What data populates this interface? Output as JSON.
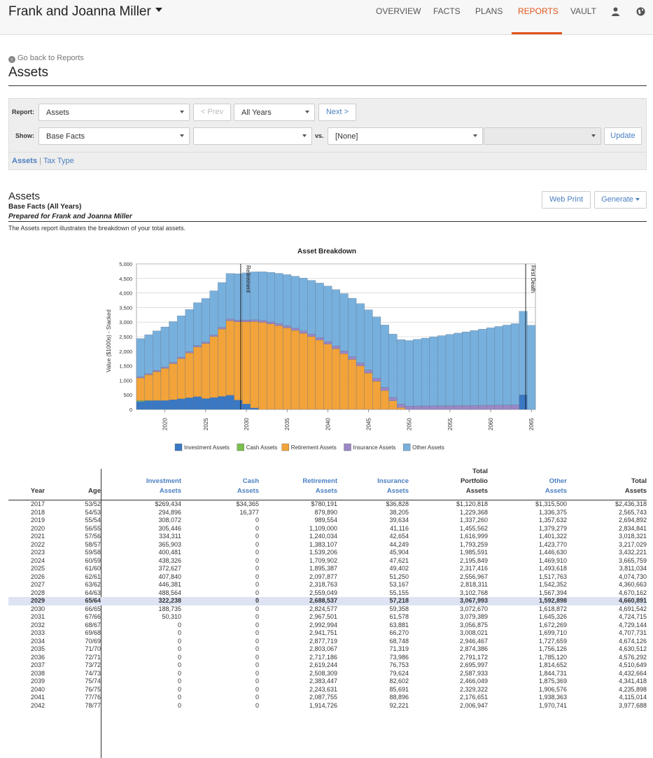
{
  "nav": {
    "client_name": "Frank and Joanna Miller",
    "items": [
      "OVERVIEW",
      "FACTS",
      "PLANS",
      "REPORTS",
      "VAULT"
    ],
    "active": "REPORTS"
  },
  "header": {
    "back_link": "Go back to Reports",
    "title": "Assets"
  },
  "filters": {
    "report_label": "Report:",
    "report_value": "Assets",
    "prev_label": "< Prev",
    "years_value": "All Years",
    "next_label": "Next >",
    "show_label": "Show:",
    "show_value": "Base Facts",
    "second_value": "",
    "vs_label": "vs.",
    "vs_value": "[None]",
    "update_label": "Update",
    "tabs": [
      "Assets",
      "Tax Type"
    ],
    "tab_separator": "|"
  },
  "report": {
    "title": "Assets",
    "subtitle": "Base Facts (All Years)",
    "prepared_for": "Prepared for Frank and Joanna Miller",
    "description": "The Assets report illustrates the breakdown of your total assets.",
    "web_print_label": "Web Print",
    "generate_label": "Generate"
  },
  "chart_data": {
    "type": "bar",
    "stacked": true,
    "title": "Asset Breakdown",
    "ylabel": "Value ($1000s) - Stacked",
    "xlabel": "",
    "ylim": [
      0,
      5000
    ],
    "yticks": [
      0,
      500,
      1000,
      1500,
      2000,
      2500,
      3000,
      3500,
      4000,
      4500,
      5000
    ],
    "ytick_labels": [
      "0",
      "500",
      "1,000",
      "1,500",
      "2,000",
      "2,500",
      "3,000",
      "3,500",
      "4,000",
      "4,500",
      "5,000"
    ],
    "xticks": [
      "2020",
      "2025",
      "2030",
      "2035",
      "2040",
      "2045",
      "2050",
      "2055",
      "2060",
      "2065"
    ],
    "categories": [
      2017,
      2018,
      2019,
      2020,
      2021,
      2022,
      2023,
      2024,
      2025,
      2026,
      2027,
      2028,
      2029,
      2030,
      2031,
      2032,
      2033,
      2034,
      2035,
      2036,
      2037,
      2038,
      2039,
      2040,
      2041,
      2042,
      2043,
      2044,
      2045,
      2046,
      2047,
      2048,
      2049,
      2050,
      2051,
      2052,
      2053,
      2054,
      2055,
      2056,
      2057,
      2058,
      2059,
      2060,
      2061,
      2062,
      2063,
      2064,
      2065
    ],
    "series": [
      {
        "name": "Investment Assets",
        "color": "#3a78c3",
        "values": [
          269,
          295,
          308,
          305,
          334,
          366,
          400,
          438,
          373,
          408,
          446,
          489,
          322,
          189,
          50,
          0,
          0,
          0,
          0,
          0,
          0,
          0,
          0,
          0,
          0,
          0,
          0,
          0,
          0,
          0,
          0,
          0,
          0,
          0,
          0,
          0,
          0,
          0,
          0,
          0,
          0,
          0,
          0,
          0,
          0,
          0,
          0,
          500,
          0
        ]
      },
      {
        "name": "Cash Assets",
        "color": "#7bbf4f",
        "values": [
          34,
          16,
          0,
          0,
          0,
          0,
          0,
          0,
          0,
          0,
          0,
          0,
          0,
          0,
          0,
          0,
          0,
          0,
          0,
          0,
          0,
          0,
          0,
          0,
          0,
          0,
          0,
          0,
          0,
          0,
          0,
          0,
          0,
          0,
          0,
          0,
          0,
          0,
          0,
          0,
          0,
          0,
          0,
          0,
          0,
          0,
          0,
          0,
          0
        ]
      },
      {
        "name": "Retirement Assets",
        "color": "#f2a33a",
        "values": [
          780,
          880,
          990,
          1109,
          1240,
          1383,
          1539,
          1710,
          1895,
          2098,
          2319,
          2559,
          2689,
          2825,
          2968,
          2993,
          2942,
          2878,
          2803,
          2717,
          2619,
          2508,
          2383,
          2244,
          2088,
          1915,
          1720,
          1500,
          1250,
          970,
          650,
          300,
          70,
          0,
          0,
          0,
          0,
          0,
          0,
          0,
          0,
          0,
          0,
          0,
          0,
          0,
          0,
          0,
          0
        ]
      },
      {
        "name": "Insurance Assets",
        "color": "#9b87c6",
        "values": [
          37,
          38,
          40,
          41,
          43,
          44,
          46,
          48,
          49,
          51,
          53,
          55,
          57,
          59,
          62,
          64,
          66,
          69,
          71,
          74,
          77,
          80,
          83,
          86,
          89,
          92,
          95,
          98,
          101,
          104,
          107,
          110,
          113,
          116,
          119,
          122,
          125,
          128,
          131,
          134,
          137,
          140,
          143,
          146,
          149,
          152,
          155,
          0,
          0
        ]
      },
      {
        "name": "Other Assets",
        "color": "#78b0dd",
        "values": [
          1316,
          1336,
          1358,
          1379,
          1401,
          1424,
          1447,
          1470,
          1494,
          1518,
          1542,
          1567,
          1593,
          1619,
          1645,
          1672,
          1700,
          1728,
          1756,
          1785,
          1815,
          1845,
          1875,
          1907,
          1938,
          1971,
          2004,
          2038,
          2072,
          2107,
          2143,
          2179,
          2215,
          2252,
          2290,
          2328,
          2367,
          2407,
          2447,
          2488,
          2529,
          2571,
          2614,
          2657,
          2701,
          2746,
          2792,
          2870,
          2890
        ]
      }
    ],
    "annotations": [
      {
        "label": "Retirement",
        "x": 2029
      },
      {
        "label": "First Death",
        "x": 2064
      }
    ],
    "legend_position": "bottom"
  },
  "table": {
    "headers": {
      "year": "Year",
      "age": "Age",
      "investment": [
        "Investment",
        "Assets"
      ],
      "cash": [
        "Cash",
        "Assets"
      ],
      "retirement": [
        "Retirement",
        "Assets"
      ],
      "insurance": [
        "Insurance",
        "Assets"
      ],
      "total_portfolio": [
        "Total",
        "Portfolio",
        "Assets"
      ],
      "other": [
        "Other",
        "Assets"
      ],
      "total": [
        "Total",
        "Assets"
      ]
    },
    "highlight_year": "2029",
    "rows": [
      [
        "2017",
        "53/52",
        "$269,434",
        "$34,365",
        "$780,191",
        "$36,828",
        "$1,120,818",
        "$1,315,500",
        "$2,436,318"
      ],
      [
        "2018",
        "54/53",
        "294,896",
        "16,377",
        "879,890",
        "38,205",
        "1,229,368",
        "1,336,375",
        "2,565,743"
      ],
      [
        "2019",
        "55/54",
        "308,072",
        "0",
        "989,554",
        "39,634",
        "1,337,260",
        "1,357,632",
        "2,694,892"
      ],
      [
        "2020",
        "56/55",
        "305,446",
        "0",
        "1,109,000",
        "41,116",
        "1,455,562",
        "1,379,279",
        "2,834,841"
      ],
      [
        "2021",
        "57/56",
        "334,311",
        "0",
        "1,240,034",
        "42,654",
        "1,616,999",
        "1,401,322",
        "3,018,321"
      ],
      [
        "2022",
        "58/57",
        "365,903",
        "0",
        "1,383,107",
        "44,249",
        "1,793,259",
        "1,423,770",
        "3,217,029"
      ],
      [
        "2023",
        "59/58",
        "400,481",
        "0",
        "1,539,206",
        "45,904",
        "1,985,591",
        "1,446,630",
        "3,432,221"
      ],
      [
        "2024",
        "60/59",
        "438,326",
        "0",
        "1,709,902",
        "47,621",
        "2,195,849",
        "1,469,910",
        "3,665,759"
      ],
      [
        "2025",
        "61/60",
        "372,627",
        "0",
        "1,895,387",
        "49,402",
        "2,317,416",
        "1,493,618",
        "3,811,034"
      ],
      [
        "2026",
        "62/61",
        "407,840",
        "0",
        "2,097,877",
        "51,250",
        "2,556,967",
        "1,517,763",
        "4,074,730"
      ],
      [
        "2027",
        "63/62",
        "446,381",
        "0",
        "2,318,763",
        "53,167",
        "2,818,311",
        "1,542,352",
        "4,360,663"
      ],
      [
        "2028",
        "64/63",
        "488,564",
        "0",
        "2,559,049",
        "55,155",
        "3,102,768",
        "1,567,394",
        "4,670,162"
      ],
      [
        "2029",
        "65/64",
        "322,238",
        "0",
        "2,688,537",
        "57,218",
        "3,067,993",
        "1,592,898",
        "4,660,891"
      ],
      [
        "2030",
        "66/65",
        "188,735",
        "0",
        "2,824,577",
        "59,358",
        "3,072,670",
        "1,618,872",
        "4,691,542"
      ],
      [
        "2031",
        "67/66",
        "50,310",
        "0",
        "2,967,501",
        "61,578",
        "3,079,389",
        "1,645,326",
        "4,724,715"
      ],
      [
        "2032",
        "68/67",
        "0",
        "0",
        "2,992,994",
        "63,881",
        "3,056,875",
        "1,672,269",
        "4,729,144"
      ],
      [
        "2033",
        "69/68",
        "0",
        "0",
        "2,941,751",
        "66,270",
        "3,008,021",
        "1,699,710",
        "4,707,731"
      ],
      [
        "2034",
        "70/69",
        "0",
        "0",
        "2,877,719",
        "68,748",
        "2,946,467",
        "1,727,659",
        "4,674,126"
      ],
      [
        "2035",
        "71/70",
        "0",
        "0",
        "2,803,067",
        "71,319",
        "2,874,386",
        "1,756,126",
        "4,630,512"
      ],
      [
        "2036",
        "72/71",
        "0",
        "0",
        "2,717,186",
        "73,986",
        "2,791,172",
        "1,785,120",
        "4,576,292"
      ],
      [
        "2037",
        "73/72",
        "0",
        "0",
        "2,619,244",
        "76,753",
        "2,695,997",
        "1,814,652",
        "4,510,649"
      ],
      [
        "2038",
        "74/73",
        "0",
        "0",
        "2,508,309",
        "79,624",
        "2,587,933",
        "1,844,731",
        "4,432,664"
      ],
      [
        "2039",
        "75/74",
        "0",
        "0",
        "2,383,447",
        "82,602",
        "2,466,049",
        "1,875,369",
        "4,341,418"
      ],
      [
        "2040",
        "76/75",
        "0",
        "0",
        "2,243,631",
        "85,691",
        "2,329,322",
        "1,906,576",
        "4,235,898"
      ],
      [
        "2041",
        "77/76",
        "0",
        "0",
        "2,087,755",
        "88,896",
        "2,176,651",
        "1,938,363",
        "4,115,014"
      ],
      [
        "2042",
        "78/77",
        "0",
        "0",
        "1,914,726",
        "92,221",
        "2,006,947",
        "1,970,741",
        "3,977,688"
      ]
    ]
  }
}
